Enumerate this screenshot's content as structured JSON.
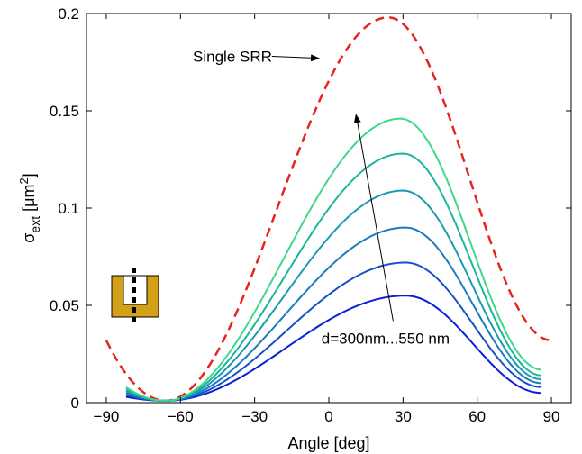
{
  "chart_data": {
    "type": "line",
    "xlabel": "Angle [deg]",
    "ylabel": {
      "base": "σ",
      "sub": "ext",
      "unit_pre": " [μm",
      "unit_sup": "2",
      "unit_post": "]"
    },
    "xlim": [
      -98,
      98
    ],
    "ylim": [
      0,
      0.2
    ],
    "xticks": [
      -90,
      -60,
      -30,
      0,
      30,
      60,
      90
    ],
    "xtick_labels": [
      "−90",
      "−60",
      "−30",
      "0",
      "30",
      "60",
      "90"
    ],
    "yticks": [
      0,
      0.05,
      0.1,
      0.15,
      0.2
    ],
    "ytick_labels": [
      "0",
      "0.05",
      "0.1",
      "0.15",
      "0.2"
    ],
    "grid": false,
    "series": [
      {
        "name": "Single SRR",
        "color": "#e8231f",
        "style": "dashed",
        "x_range": [
          -90,
          90
        ],
        "min_x": -66,
        "min_y": 0.001,
        "peak_x": 24,
        "peak_y": 0.198,
        "start_y": 0.032,
        "end_y": 0.032
      },
      {
        "color": "#0b1fd6",
        "style": "solid",
        "x_range": [
          -82,
          86
        ],
        "min_x": -66,
        "min_y": 0.001,
        "peak_x": 31,
        "peak_y": 0.055,
        "start_y": 0.003,
        "end_y": 0.005
      },
      {
        "color": "#1651c8",
        "style": "solid",
        "x_range": [
          -82,
          86
        ],
        "min_x": -66,
        "min_y": 0.001,
        "peak_x": 31,
        "peak_y": 0.072,
        "start_y": 0.004,
        "end_y": 0.008
      },
      {
        "color": "#1a7bbe",
        "style": "solid",
        "x_range": [
          -82,
          86
        ],
        "min_x": -66,
        "min_y": 0.001,
        "peak_x": 31,
        "peak_y": 0.09,
        "start_y": 0.005,
        "end_y": 0.01
      },
      {
        "color": "#1a9ab0",
        "style": "solid",
        "x_range": [
          -82,
          86
        ],
        "min_x": -66,
        "min_y": 0.001,
        "peak_x": 30,
        "peak_y": 0.109,
        "start_y": 0.006,
        "end_y": 0.012
      },
      {
        "color": "#1db59a",
        "style": "solid",
        "x_range": [
          -82,
          86
        ],
        "min_x": -66,
        "min_y": 0.001,
        "peak_x": 30,
        "peak_y": 0.128,
        "start_y": 0.007,
        "end_y": 0.014
      },
      {
        "color": "#3fd88a",
        "style": "solid",
        "x_range": [
          -82,
          86
        ],
        "min_x": -66,
        "min_y": 0.001,
        "peak_x": 29,
        "peak_y": 0.146,
        "start_y": 0.008,
        "end_y": 0.017
      }
    ],
    "annotations": [
      {
        "text": "Single SRR",
        "x": -55,
        "y": 0.178,
        "arrow_from": [
          -23,
          0.178
        ],
        "arrow_to": [
          -4,
          0.177
        ]
      },
      {
        "text": "d=300nm...550 nm",
        "x": -3,
        "y": 0.033,
        "arrow_from": [
          26,
          0.042
        ],
        "arrow_to": [
          11,
          0.148
        ]
      }
    ],
    "inset_icon": "srr-u-shape-icon",
    "inset_color": "#d4a017"
  }
}
